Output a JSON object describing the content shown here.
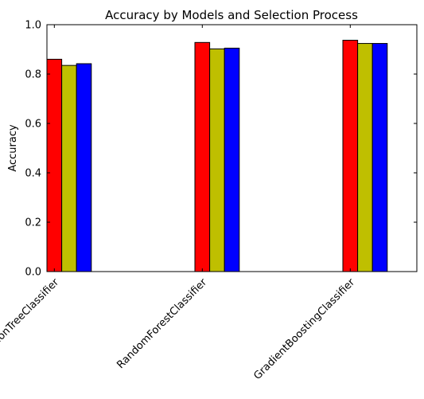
{
  "chart_data": {
    "type": "bar",
    "title": "Accuracy by Models and Selection Process",
    "xlabel": "",
    "ylabel": "Accuracy",
    "categories": [
      "DecisionTreeClassifier",
      "RandomForestClassifier",
      "GradientBoostingClassifier"
    ],
    "series": [
      {
        "color": "#ff0000",
        "values": [
          0.86,
          0.928,
          0.937
        ]
      },
      {
        "color": "#bfbf00",
        "values": [
          0.835,
          0.902,
          0.924
        ]
      },
      {
        "color": "#0000ff",
        "values": [
          0.842,
          0.905,
          0.924
        ]
      }
    ],
    "ylim": [
      0,
      1.0
    ],
    "yticks": [
      "0.0",
      "0.2",
      "0.4",
      "0.6",
      "0.8",
      "1.0"
    ],
    "grid": false,
    "legend": "none"
  }
}
